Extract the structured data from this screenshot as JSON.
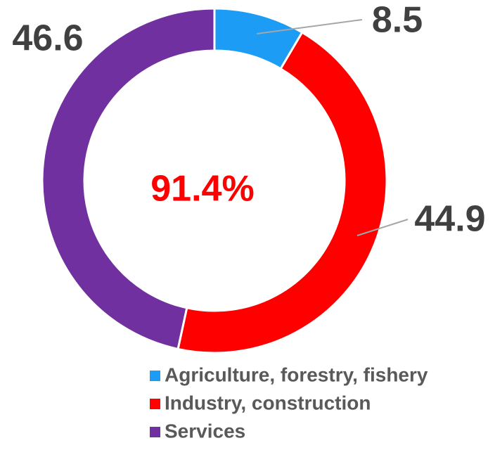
{
  "chart_data": {
    "type": "donut",
    "categories": [
      "Agriculture, forestry, fishery",
      "Industry, construction",
      "Services"
    ],
    "values": [
      8.5,
      44.9,
      46.6
    ],
    "colors": [
      "#1c9cf4",
      "#ff0000",
      "#7030a0"
    ],
    "center_label": "91.4%"
  }
}
